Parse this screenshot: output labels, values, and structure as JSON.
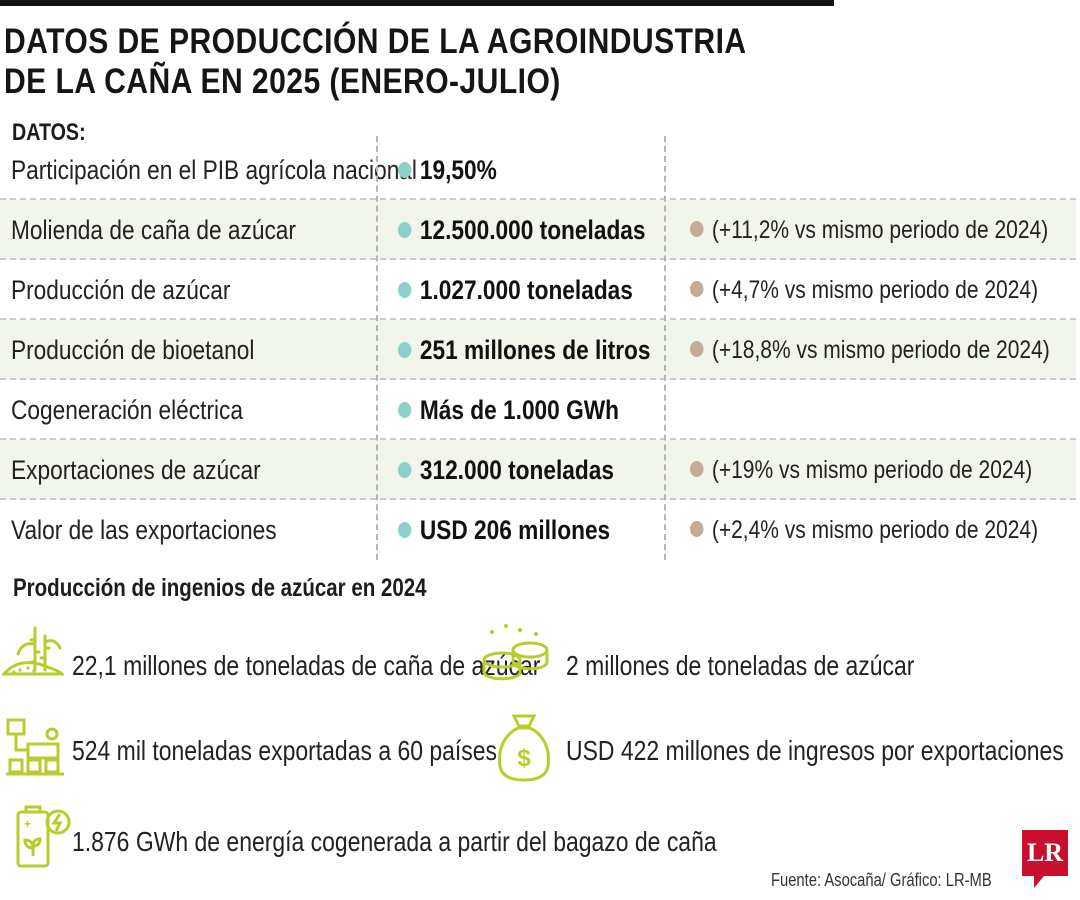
{
  "title": {
    "line1": "DATOS DE PRODUCCIÓN DE LA AGROINDUSTRIA",
    "line2": "DE LA CAÑA EN 2025 (ENERO-JULIO)"
  },
  "datos_label": "DATOS:",
  "colors": {
    "teal_dot": "#8ecfcc",
    "tan_dot": "#c4ab95",
    "row_shade": "#f1f5ec",
    "icon_green": "#b9cc2c",
    "logo_red": "#c8102e"
  },
  "chart_data": {
    "type": "table",
    "rows": [
      {
        "label": "Participación en el PIB agrícola nacional",
        "value": "19,50%",
        "change": ""
      },
      {
        "label": "Molienda de caña de azúcar",
        "value": "12.500.000 toneladas",
        "change": "(+11,2% vs mismo periodo de 2024)"
      },
      {
        "label": "Producción de azúcar",
        "value": "1.027.000 toneladas",
        "change": "(+4,7% vs mismo periodo de 2024)"
      },
      {
        "label": "Producción de bioetanol",
        "value": "251 millones de litros",
        "change": "(+18,8% vs mismo periodo de 2024)"
      },
      {
        "label": "Cogeneración eléctrica",
        "value": "Más de 1.000 GWh",
        "change": ""
      },
      {
        "label": "Exportaciones de azúcar",
        "value": "312.000 toneladas",
        "change": "(+19% vs mismo periodo de 2024)"
      },
      {
        "label": "Valor de las exportaciones",
        "value": "USD 206 millones",
        "change": "(+2,4% vs mismo periodo de 2024)"
      }
    ]
  },
  "section2": {
    "title": "Producción de ingenios de azúcar en 2024",
    "items": [
      {
        "icon": "sugarcane-field-icon",
        "text": "22,1 millones de toneladas de caña de azúcar"
      },
      {
        "icon": "sugar-bowls-icon",
        "text": "2 millones de toneladas de azúcar"
      },
      {
        "icon": "factory-export-icon",
        "text": "524 mil toneladas exportadas a 60 países"
      },
      {
        "icon": "money-bag-icon",
        "text": "USD 422 millones de ingresos por exportaciones"
      },
      {
        "icon": "energy-battery-icon",
        "text": "1.876 GWh de energía cogenerada a partir del bagazo de caña"
      }
    ]
  },
  "logo_text": "LR",
  "source": "Fuente: Asocaña/ Gráfico: LR-MB"
}
